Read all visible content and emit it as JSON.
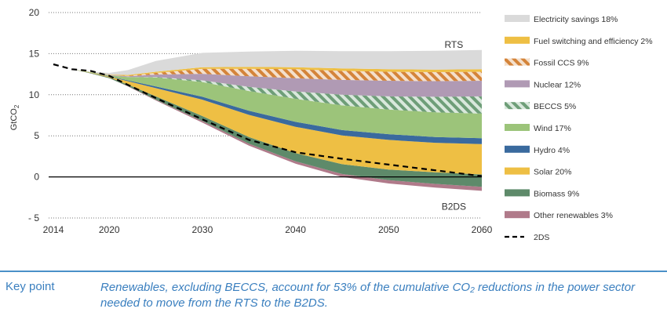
{
  "chart_data": {
    "type": "area",
    "ylabel": "GtCO2",
    "ylim": [
      -5,
      20
    ],
    "yticks": [
      20,
      15,
      10,
      5,
      0,
      -5
    ],
    "ytick_labels": [
      "20",
      "15",
      "10",
      "5",
      "0",
      "- 5"
    ],
    "xlim": [
      2014,
      2060
    ],
    "xticks": [
      2014,
      2020,
      2030,
      2040,
      2050,
      2060
    ],
    "grid": "horizontal-dotted",
    "legend_position": "right",
    "annotations": [
      {
        "text": "RTS",
        "x": 2057,
        "y": 16.1
      },
      {
        "text": "B2DS",
        "x": 2057,
        "y": -3.6
      }
    ],
    "x": [
      2014,
      2016,
      2018,
      2020,
      2022,
      2025,
      2030,
      2035,
      2040,
      2045,
      2050,
      2055,
      2060
    ],
    "stack_bottom_B2DS": [
      13.7,
      13.1,
      12.6,
      12.0,
      11.0,
      9.3,
      6.6,
      3.8,
      1.6,
      0.0,
      -0.8,
      -1.3,
      -1.7
    ],
    "series": [
      {
        "name": "Other renewables 3%",
        "color": "#b07a8a",
        "pattern": "solid",
        "values": [
          0,
          0,
          0,
          0,
          0.05,
          0.1,
          0.2,
          0.25,
          0.3,
          0.35,
          0.4,
          0.45,
          0.5
        ]
      },
      {
        "name": "Biomass 9%",
        "color": "#5e8a6a",
        "pattern": "solid",
        "values": [
          0,
          0,
          0.05,
          0.1,
          0.2,
          0.4,
          0.6,
          0.8,
          1.0,
          1.2,
          1.3,
          1.4,
          1.5
        ]
      },
      {
        "name": "Solar 20%",
        "color": "#eebf44",
        "pattern": "solid",
        "values": [
          0,
          0,
          0.05,
          0.1,
          0.4,
          1.0,
          2.0,
          2.7,
          3.2,
          3.5,
          3.6,
          3.6,
          3.7
        ]
      },
      {
        "name": "Hydro 4%",
        "color": "#3a6a9e",
        "pattern": "solid",
        "values": [
          0,
          0,
          0,
          0.05,
          0.1,
          0.2,
          0.35,
          0.5,
          0.6,
          0.65,
          0.7,
          0.7,
          0.7
        ]
      },
      {
        "name": "Wind 17%",
        "color": "#9cc47a",
        "pattern": "solid",
        "values": [
          0,
          0,
          0.05,
          0.1,
          0.4,
          1.1,
          1.8,
          2.4,
          2.8,
          3.0,
          3.0,
          3.0,
          3.0
        ]
      },
      {
        "name": "BECCS 5%",
        "color": "#6e9e78",
        "pattern": "diagonal-stripes",
        "values": [
          0,
          0,
          0,
          0,
          0,
          0.05,
          0.2,
          0.5,
          0.9,
          1.3,
          1.6,
          1.9,
          2.1
        ]
      },
      {
        "name": "Nuclear 12%",
        "color": "#b09ab4",
        "pattern": "solid",
        "values": [
          0,
          0,
          0,
          0.05,
          0.1,
          0.3,
          0.8,
          1.3,
          1.6,
          1.8,
          1.9,
          1.9,
          1.9
        ]
      },
      {
        "name": "Fossil CCS 9%",
        "color": "#d4843a",
        "pattern": "diagonal-stripes",
        "values": [
          0,
          0,
          0,
          0,
          0.05,
          0.2,
          0.6,
          0.9,
          1.1,
          1.1,
          1.1,
          1.1,
          1.1
        ]
      },
      {
        "name": "Fuel switching and efficiency 2%",
        "color": "#eebf44",
        "pattern": "solid",
        "values": [
          0,
          0,
          0,
          0.05,
          0.1,
          0.15,
          0.2,
          0.25,
          0.25,
          0.3,
          0.3,
          0.3,
          0.3
        ]
      },
      {
        "name": "Electricity savings 18%",
        "color": "#dadada",
        "pattern": "solid",
        "values": [
          0,
          0,
          0.05,
          0.2,
          0.6,
          1.3,
          1.75,
          1.85,
          2.0,
          2.1,
          2.2,
          2.3,
          2.35
        ]
      }
    ],
    "line_2DS": {
      "name": "2DS",
      "x": [
        2014,
        2016,
        2018,
        2020,
        2022,
        2025,
        2030,
        2035,
        2040,
        2045,
        2050,
        2055,
        2060
      ],
      "values": [
        13.7,
        13.1,
        12.9,
        12.3,
        11.2,
        9.6,
        7.0,
        4.5,
        3.0,
        2.2,
        1.5,
        0.8,
        0.1
      ]
    },
    "legend": [
      {
        "label": "Electricity savings 18%",
        "color": "#dadada",
        "pattern": "solid"
      },
      {
        "label": "Fuel switching and efficiency 2%",
        "color": "#eebf44",
        "pattern": "solid"
      },
      {
        "label": "Fossil CCS 9%",
        "color": "#d4843a",
        "pattern": "diagonal-stripes"
      },
      {
        "label": "Nuclear 12%",
        "color": "#b09ab4",
        "pattern": "solid"
      },
      {
        "label": "BECCS 5%",
        "color": "#6e9e78",
        "pattern": "diagonal-stripes"
      },
      {
        "label": "Wind 17%",
        "color": "#9cc47a",
        "pattern": "solid"
      },
      {
        "label": "Hydro 4%",
        "color": "#3a6a9e",
        "pattern": "solid"
      },
      {
        "label": "Solar 20%",
        "color": "#eebf44",
        "pattern": "solid"
      },
      {
        "label": "Biomass 9%",
        "color": "#5e8a6a",
        "pattern": "solid"
      },
      {
        "label": "Other renewables 3%",
        "color": "#b07a8a",
        "pattern": "solid"
      },
      {
        "label": "2DS",
        "color": "#000000",
        "pattern": "dashed-line"
      }
    ]
  },
  "key_point": {
    "label": "Key point",
    "text": "Renewables, excluding BECCS, account for 53% of the cumulative CO₂ reductions in the power sector needed to move from the RTS to the B2DS."
  },
  "colors": {
    "accent": "#3a7fbf",
    "zero_line": "#000000",
    "grid": "#777777"
  }
}
